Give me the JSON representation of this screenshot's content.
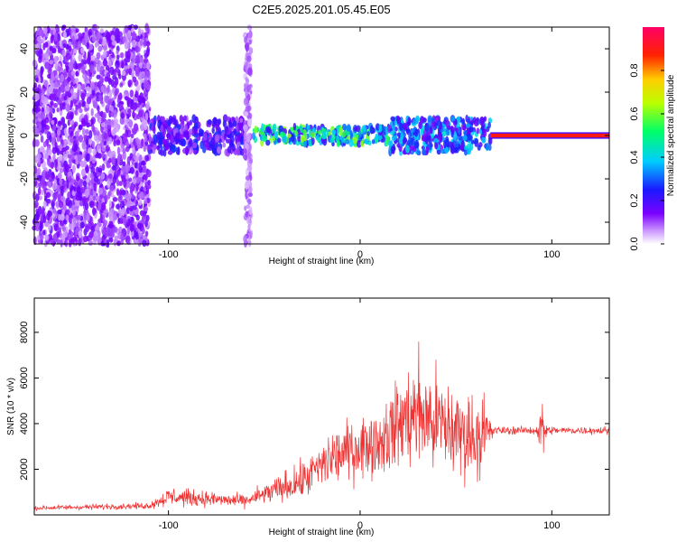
{
  "page_title": "C2E5.2025.201.05.45.E05",
  "chart_data": [
    {
      "type": "heatmap",
      "title": "C2E5.2025.201.05.45.E05",
      "xlabel": "Height of straight line (km)",
      "ylabel": "Frequency (Hz)",
      "xlim": [
        -170,
        130
      ],
      "ylim": [
        -50,
        50
      ],
      "x_ticks": [
        -100,
        0,
        100
      ],
      "x_tick_labels": [
        "-100",
        "0",
        "100"
      ],
      "y_ticks": [
        -40,
        -20,
        0,
        20,
        40
      ],
      "y_tick_labels": [
        "-40",
        "-20",
        "0",
        "20",
        "40"
      ],
      "colorbar": {
        "label": "Normalized spectral amplitude",
        "range": [
          0,
          1
        ],
        "ticks": [
          0.0,
          0.2,
          0.4,
          0.6,
          0.8
        ],
        "tick_labels": [
          "0.0",
          "0.2",
          "0.4",
          "0.6",
          "0.8"
        ],
        "colormap": "rainbow (white-violet-blue-cyan-green-yellow-red-magenta)"
      },
      "regions": [
        {
          "x_range": [
            -170,
            -110
          ],
          "freq_spread": [
            -50,
            50
          ],
          "amplitude": 0.12,
          "note": "broadband noise"
        },
        {
          "x_range": [
            -110,
            -60
          ],
          "freq_spread": [
            -8,
            8
          ],
          "amplitude": 0.2
        },
        {
          "x_range": [
            -60,
            -57
          ],
          "freq_spread": [
            -50,
            50
          ],
          "amplitude": 0.08
        },
        {
          "x_range": [
            -57,
            15
          ],
          "freq_spread": [
            -4,
            4
          ],
          "amplitude": 0.45
        },
        {
          "x_range": [
            15,
            68
          ],
          "freq_spread": [
            -8,
            8
          ],
          "amplitude": 0.3
        },
        {
          "x_range": [
            68,
            130
          ],
          "freq_spread": [
            -1.5,
            1.5
          ],
          "amplitude": 0.9,
          "note": "narrow line near 0 Hz"
        }
      ]
    },
    {
      "type": "line",
      "xlabel": "Height of straight line (km)",
      "ylabel": "SNR (10 * v/v)",
      "xlim": [
        -170,
        130
      ],
      "ylim": [
        0,
        9500
      ],
      "x_ticks": [
        -100,
        0,
        100
      ],
      "x_tick_labels": [
        "-100",
        "0",
        "100"
      ],
      "y_ticks": [
        2000,
        4000,
        6000,
        8000
      ],
      "y_tick_labels": [
        "2000",
        "4000",
        "6000",
        "8000"
      ],
      "grid": false,
      "series": [
        {
          "color": "#ee3333",
          "envelope": [
            {
              "x": -170,
              "mean": 300,
              "spread": 150
            },
            {
              "x": -110,
              "mean": 400,
              "spread": 200
            },
            {
              "x": -100,
              "mean": 800,
              "spread": 600
            },
            {
              "x": -60,
              "mean": 600,
              "spread": 400
            },
            {
              "x": -50,
              "mean": 900,
              "spread": 700
            },
            {
              "x": -30,
              "mean": 1500,
              "spread": 1200
            },
            {
              "x": -15,
              "mean": 2500,
              "spread": 1800
            },
            {
              "x": 0,
              "mean": 3000,
              "spread": 2000
            },
            {
              "x": 10,
              "mean": 3200,
              "spread": 2000
            },
            {
              "x": 20,
              "mean": 4000,
              "spread": 3000
            },
            {
              "x": 30,
              "mean": 4500,
              "spread": 3500
            },
            {
              "x": 40,
              "mean": 4000,
              "spread": 3500
            },
            {
              "x": 55,
              "mean": 3500,
              "spread": 2800
            },
            {
              "x": 65,
              "mean": 3500,
              "spread": 2500
            },
            {
              "x": 70,
              "mean": 3700,
              "spread": 250
            },
            {
              "x": 92,
              "mean": 3700,
              "spread": 250
            },
            {
              "x": 95,
              "mean": 3700,
              "spread": 2200
            },
            {
              "x": 98,
              "mean": 3700,
              "spread": 250
            },
            {
              "x": 130,
              "mean": 3700,
              "spread": 250
            }
          ]
        }
      ]
    }
  ]
}
